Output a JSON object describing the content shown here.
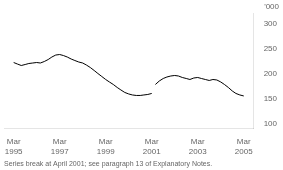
{
  "chart_data": {
    "type": "line",
    "ylabel": "'000",
    "annotations": [
      "Series break at April 2001; see paragraph 13 of Explanatory Notes."
    ],
    "series": [
      {
        "color": "#000000",
        "x": [
          1995.17,
          1995.33,
          1995.5,
          1995.67,
          1995.83,
          1996.0,
          1996.17,
          1996.33,
          1996.5,
          1996.67,
          1996.83,
          1997.0,
          1997.17,
          1997.33,
          1997.5,
          1997.67,
          1997.83,
          1998.0,
          1998.17,
          1998.33,
          1998.5,
          1998.67,
          1998.83,
          1999.0,
          1999.17,
          1999.33,
          1999.5,
          1999.67,
          1999.83,
          2000.0,
          2000.17,
          2000.33,
          2000.5,
          2000.67,
          2000.83,
          2001.0,
          2001.17
        ],
        "values": [
          222,
          219,
          216,
          218,
          220,
          221,
          222,
          221,
          224,
          228,
          233,
          237,
          238,
          236,
          233,
          229,
          226,
          223,
          221,
          217,
          212,
          206,
          200,
          194,
          188,
          183,
          178,
          172,
          167,
          162,
          159,
          157,
          156,
          156,
          157,
          158,
          160
        ]
      },
      {
        "color": "#000000",
        "x": [
          2001.33,
          2001.5,
          2001.67,
          2001.83,
          2002.0,
          2002.17,
          2002.33,
          2002.5,
          2002.67,
          2002.83,
          2003.0,
          2003.17,
          2003.33,
          2003.5,
          2003.67,
          2003.83,
          2004.0,
          2004.17,
          2004.33,
          2004.5,
          2004.67,
          2004.83,
          2005.0,
          2005.17
        ],
        "values": [
          178,
          185,
          190,
          193,
          195,
          196,
          195,
          192,
          190,
          188,
          191,
          192,
          190,
          188,
          186,
          188,
          187,
          183,
          178,
          172,
          165,
          160,
          157,
          155
        ]
      }
    ],
    "xlim": [
      1994.75,
      2005.6
    ],
    "xticks": [
      {
        "value": 1995.17,
        "label": "Mar\n1995"
      },
      {
        "value": 1997.17,
        "label": "Mar\n1997"
      },
      {
        "value": 1999.17,
        "label": "Mar\n1999"
      },
      {
        "value": 2001.17,
        "label": "Mar\n2001"
      },
      {
        "value": 2003.17,
        "label": "Mar\n2003"
      },
      {
        "value": 2005.17,
        "label": "Mar\n2005"
      }
    ],
    "ylim": [
      90,
      320
    ],
    "yticks": [
      100,
      150,
      200,
      250,
      300
    ],
    "grid": false
  }
}
